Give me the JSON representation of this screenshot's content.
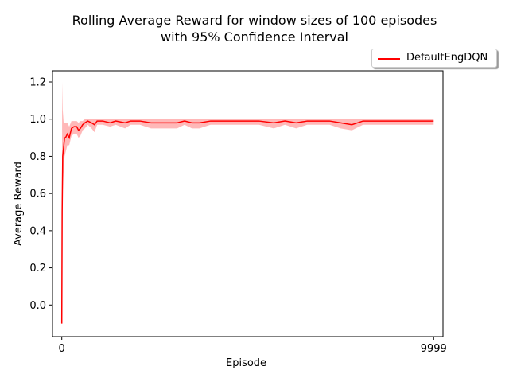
{
  "chart_data": {
    "type": "line",
    "title": "Rolling Average Reward for window sizes of 100 episodes",
    "subtitle": "with 95% Confidence Interval",
    "xlabel": "Episode",
    "ylabel": "Average Reward",
    "xlim": [
      -250,
      10250
    ],
    "ylim": [
      -0.17,
      1.26
    ],
    "x_ticks": [
      0,
      9999
    ],
    "y_ticks": [
      0.0,
      0.2,
      0.4,
      0.6,
      0.8,
      1.0,
      1.2
    ],
    "y_tick_labels": [
      "0.0",
      "0.2",
      "0.4",
      "0.6",
      "0.8",
      "1.0",
      "1.2"
    ],
    "x_tick_labels": [
      "0",
      "9999"
    ],
    "grid": false,
    "legend_position": "top-right",
    "colors": {
      "line": "#ff0000",
      "band": "#ffa0a0"
    },
    "series": [
      {
        "name": "DefaultEngDQN",
        "points": [
          [
            0,
            -0.1
          ],
          [
            10,
            0.5
          ],
          [
            25,
            0.8
          ],
          [
            50,
            0.85
          ],
          [
            75,
            0.9
          ],
          [
            100,
            0.9
          ],
          [
            150,
            0.92
          ],
          [
            200,
            0.9
          ],
          [
            260,
            0.95
          ],
          [
            330,
            0.96
          ],
          [
            400,
            0.96
          ],
          [
            450,
            0.94
          ],
          [
            500,
            0.95
          ],
          [
            560,
            0.97
          ],
          [
            620,
            0.98
          ],
          [
            700,
            0.99
          ],
          [
            800,
            0.98
          ],
          [
            880,
            0.97
          ],
          [
            950,
            0.99
          ],
          [
            1000,
            0.99
          ],
          [
            1100,
            0.99
          ],
          [
            1300,
            0.98
          ],
          [
            1450,
            0.99
          ],
          [
            1700,
            0.98
          ],
          [
            1850,
            0.99
          ],
          [
            2100,
            0.99
          ],
          [
            2400,
            0.98
          ],
          [
            2600,
            0.98
          ],
          [
            2900,
            0.98
          ],
          [
            3100,
            0.98
          ],
          [
            3300,
            0.99
          ],
          [
            3500,
            0.98
          ],
          [
            3700,
            0.98
          ],
          [
            4000,
            0.99
          ],
          [
            4300,
            0.99
          ],
          [
            4600,
            0.99
          ],
          [
            5000,
            0.99
          ],
          [
            5300,
            0.99
          ],
          [
            5700,
            0.98
          ],
          [
            6000,
            0.99
          ],
          [
            6300,
            0.98
          ],
          [
            6600,
            0.99
          ],
          [
            6900,
            0.99
          ],
          [
            7200,
            0.99
          ],
          [
            7500,
            0.98
          ],
          [
            7800,
            0.97
          ],
          [
            8100,
            0.99
          ],
          [
            8500,
            0.99
          ],
          [
            9000,
            0.99
          ],
          [
            9500,
            0.99
          ],
          [
            9999,
            0.99
          ]
        ],
        "ci": [
          [
            0,
            -0.1,
            -0.1
          ],
          [
            10,
            0.3,
            1.2
          ],
          [
            25,
            0.6,
            1.05
          ],
          [
            50,
            0.72,
            0.98
          ],
          [
            75,
            0.8,
            0.98
          ],
          [
            100,
            0.82,
            0.98
          ],
          [
            150,
            0.86,
            0.98
          ],
          [
            200,
            0.86,
            0.96
          ],
          [
            260,
            0.91,
            0.99
          ],
          [
            330,
            0.92,
            0.99
          ],
          [
            400,
            0.92,
            0.99
          ],
          [
            450,
            0.9,
            0.98
          ],
          [
            500,
            0.91,
            0.99
          ],
          [
            560,
            0.94,
            0.99
          ],
          [
            620,
            0.95,
            1.0
          ],
          [
            700,
            0.97,
            1.0
          ],
          [
            800,
            0.95,
            1.0
          ],
          [
            880,
            0.93,
            1.0
          ],
          [
            950,
            0.97,
            1.0
          ],
          [
            1000,
            0.97,
            1.0
          ],
          [
            1100,
            0.97,
            1.0
          ],
          [
            1300,
            0.96,
            1.0
          ],
          [
            1450,
            0.97,
            1.0
          ],
          [
            1700,
            0.95,
            1.0
          ],
          [
            1850,
            0.97,
            1.0
          ],
          [
            2100,
            0.97,
            1.0
          ],
          [
            2400,
            0.95,
            1.0
          ],
          [
            2600,
            0.95,
            1.0
          ],
          [
            2900,
            0.95,
            1.0
          ],
          [
            3100,
            0.95,
            1.0
          ],
          [
            3300,
            0.97,
            1.0
          ],
          [
            3500,
            0.95,
            1.0
          ],
          [
            3700,
            0.95,
            1.0
          ],
          [
            4000,
            0.97,
            1.0
          ],
          [
            4300,
            0.97,
            1.0
          ],
          [
            4600,
            0.97,
            1.0
          ],
          [
            5000,
            0.97,
            1.0
          ],
          [
            5300,
            0.97,
            1.0
          ],
          [
            5700,
            0.95,
            1.0
          ],
          [
            6000,
            0.97,
            1.0
          ],
          [
            6300,
            0.95,
            1.0
          ],
          [
            6600,
            0.97,
            1.0
          ],
          [
            6900,
            0.97,
            1.0
          ],
          [
            7200,
            0.97,
            1.0
          ],
          [
            7500,
            0.95,
            1.0
          ],
          [
            7800,
            0.94,
            1.0
          ],
          [
            8100,
            0.97,
            1.0
          ],
          [
            8500,
            0.97,
            1.0
          ],
          [
            9000,
            0.97,
            1.0
          ],
          [
            9500,
            0.97,
            1.0
          ],
          [
            9999,
            0.97,
            1.0
          ]
        ]
      }
    ]
  }
}
